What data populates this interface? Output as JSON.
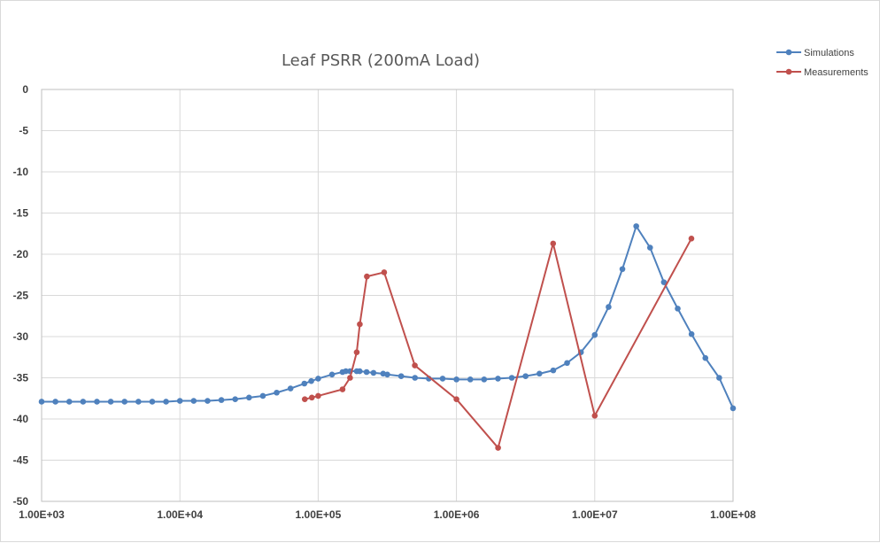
{
  "chart_data": {
    "type": "line",
    "title": "Leaf PSRR (200mA Load)",
    "xlabel": "",
    "ylabel": "",
    "x_scale": "log",
    "xlim": [
      1000,
      100000000
    ],
    "ylim": [
      -50,
      0
    ],
    "grid": true,
    "legend_position": "top-right",
    "x_tick_values": [
      1000,
      10000,
      100000,
      1000000,
      10000000,
      100000000
    ],
    "x_tick_labels": [
      "1.00E+03",
      "1.00E+04",
      "1.00E+05",
      "1.00E+06",
      "1.00E+07",
      "1.00E+08"
    ],
    "y_tick_values": [
      0,
      -5,
      -10,
      -15,
      -20,
      -25,
      -30,
      -35,
      -40,
      -45,
      -50
    ],
    "y_tick_labels": [
      "0",
      "-5",
      "-10",
      "-15",
      "-20",
      "-25",
      "-30",
      "-35",
      "-40",
      "-45",
      "-50"
    ],
    "series": [
      {
        "name": "Simulations",
        "color": "#4f81bd",
        "points": [
          [
            1000,
            -37.9
          ],
          [
            1259,
            -37.9
          ],
          [
            1585,
            -37.9
          ],
          [
            1995,
            -37.9
          ],
          [
            2512,
            -37.9
          ],
          [
            3162,
            -37.9
          ],
          [
            3981,
            -37.9
          ],
          [
            5012,
            -37.9
          ],
          [
            6310,
            -37.9
          ],
          [
            7943,
            -37.9
          ],
          [
            10000,
            -37.8
          ],
          [
            12589,
            -37.8
          ],
          [
            15849,
            -37.8
          ],
          [
            19953,
            -37.7
          ],
          [
            25119,
            -37.6
          ],
          [
            31623,
            -37.4
          ],
          [
            39811,
            -37.2
          ],
          [
            50119,
            -36.8
          ],
          [
            63096,
            -36.3
          ],
          [
            79433,
            -35.7
          ],
          [
            89125,
            -35.4
          ],
          [
            100000,
            -35.1
          ],
          [
            125893,
            -34.6
          ],
          [
            150000,
            -34.3
          ],
          [
            158489,
            -34.2
          ],
          [
            170000,
            -34.2
          ],
          [
            190000,
            -34.2
          ],
          [
            199526,
            -34.2
          ],
          [
            223872,
            -34.3
          ],
          [
            251189,
            -34.4
          ],
          [
            295000,
            -34.5
          ],
          [
            316228,
            -34.6
          ],
          [
            398107,
            -34.8
          ],
          [
            501187,
            -35.0
          ],
          [
            630957,
            -35.1
          ],
          [
            794328,
            -35.1
          ],
          [
            1000000,
            -35.2
          ],
          [
            1258925,
            -35.2
          ],
          [
            1584893,
            -35.2
          ],
          [
            1995262,
            -35.1
          ],
          [
            2511886,
            -35.0
          ],
          [
            3162278,
            -34.8
          ],
          [
            3981072,
            -34.5
          ],
          [
            5011872,
            -34.1
          ],
          [
            6309573,
            -33.2
          ],
          [
            7943282,
            -31.9
          ],
          [
            10000000,
            -29.8
          ],
          [
            12589254,
            -26.4
          ],
          [
            15848932,
            -21.8
          ],
          [
            19952623,
            -16.6
          ],
          [
            25118864,
            -19.2
          ],
          [
            31622777,
            -23.4
          ],
          [
            39810717,
            -26.6
          ],
          [
            50118723,
            -29.7
          ],
          [
            63095734,
            -32.6
          ],
          [
            79432823,
            -35.0
          ],
          [
            100000000,
            -38.7
          ]
        ]
      },
      {
        "name": "Measurements",
        "color": "#c0504d",
        "points": [
          [
            80000,
            -37.6
          ],
          [
            90000,
            -37.4
          ],
          [
            100000,
            -37.2
          ],
          [
            150000,
            -36.4
          ],
          [
            170000,
            -35.0
          ],
          [
            190000,
            -31.9
          ],
          [
            200000,
            -28.5
          ],
          [
            225000,
            -22.7
          ],
          [
            300000,
            -22.2
          ],
          [
            500000,
            -33.5
          ],
          [
            1000000,
            -37.6
          ],
          [
            2000000,
            -43.5
          ],
          [
            5000000,
            -18.7
          ],
          [
            10000000,
            -39.6
          ],
          [
            50000000,
            -18.1
          ]
        ]
      }
    ]
  }
}
